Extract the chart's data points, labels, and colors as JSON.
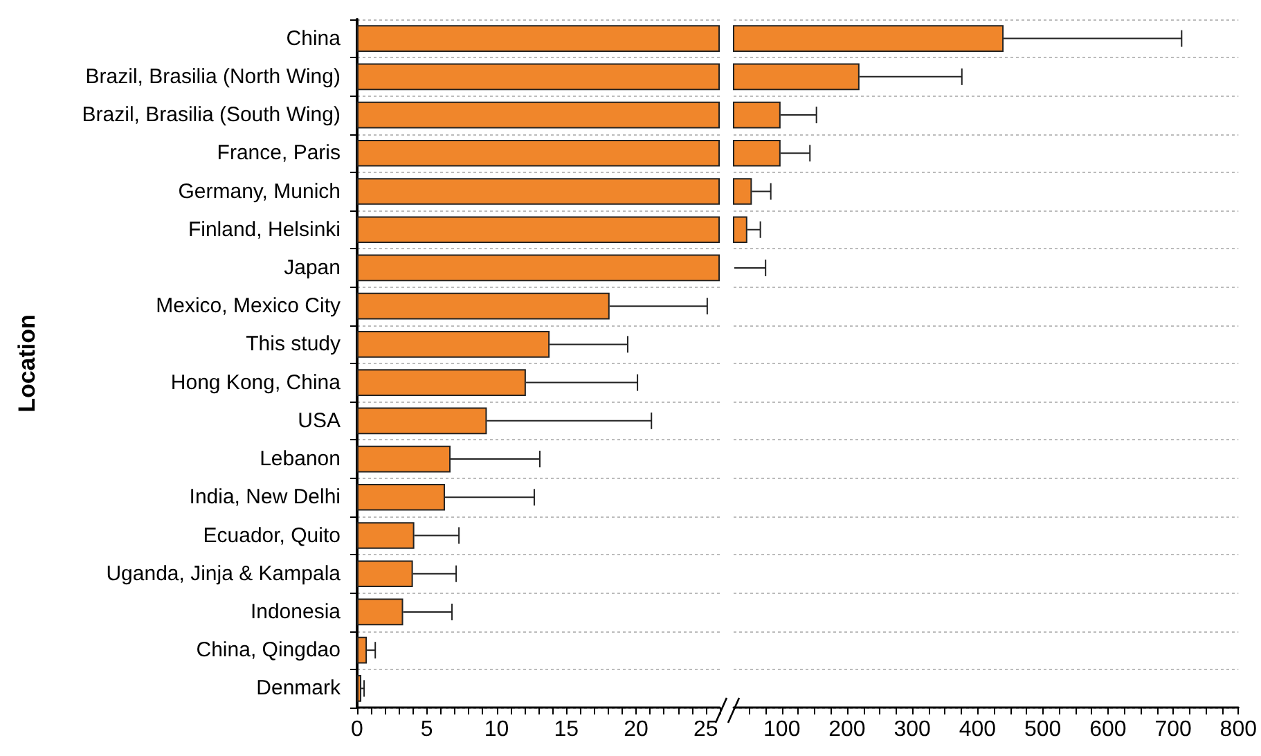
{
  "chart_data": [
    {
      "type": "bar",
      "orientation": "horizontal",
      "ylabel": "Location",
      "grid": "y",
      "categories": [
        "China",
        "Brazil, Brasilia (North Wing)",
        "Brazil, Brasilia (South Wing)",
        "France, Paris",
        "Germany, Munich",
        "Finland, Helsinki",
        "Japan",
        "Mexico, Mexico City",
        "This study",
        "Hong Kong, China",
        "USA",
        "Lebanon",
        "India, New Delhi",
        "Ecuador, Quito",
        "Uganda, Jinja & Kampala",
        "Indonesia",
        "China, Qingdao",
        "Denmark"
      ],
      "series": [
        {
          "color": "#f0862b",
          "values": [
            26,
            26,
            26,
            26,
            26,
            26,
            26,
            18.1,
            13.8,
            12.1,
            9.3,
            6.7,
            6.3,
            4.1,
            4.0,
            3.3,
            0.7,
            0.3
          ],
          "errors": [
            null,
            null,
            null,
            null,
            null,
            null,
            null,
            7.0,
            5.6,
            8.0,
            11.8,
            6.4,
            6.4,
            3.2,
            3.1,
            3.5,
            0.6,
            0.2
          ]
        }
      ],
      "xlim": [
        0,
        26
      ],
      "xticks": [
        0,
        {
          "value": 1,
          "label": null
        },
        {
          "value": 2,
          "label": null
        },
        {
          "value": 3,
          "label": null
        },
        {
          "value": 4,
          "label": null
        },
        5,
        {
          "value": 6,
          "label": null
        },
        {
          "value": 7,
          "label": null
        },
        {
          "value": 8,
          "label": null
        },
        {
          "value": 9,
          "label": null
        },
        10,
        {
          "value": 11,
          "label": null
        },
        {
          "value": 12,
          "label": null
        },
        {
          "value": 13,
          "label": null
        },
        {
          "value": 14,
          "label": null
        },
        15,
        {
          "value": 16,
          "label": null
        },
        {
          "value": 17,
          "label": null
        },
        {
          "value": 18,
          "label": null
        },
        {
          "value": 19,
          "label": null
        },
        20,
        {
          "value": 21,
          "label": null
        },
        {
          "value": 22,
          "label": null
        },
        {
          "value": 23,
          "label": null
        },
        {
          "value": 24,
          "label": null
        },
        25,
        {
          "value": 26,
          "label": null
        }
      ]
    },
    {
      "type": "bar",
      "orientation": "horizontal",
      "grid": "y",
      "tick_labels": "x",
      "series": [
        {
          "color": "#f0862b",
          "values": [
            440,
            219,
            98,
            98,
            54,
            47,
            27,
            null,
            null,
            null,
            null,
            null,
            null,
            null,
            null,
            null,
            null,
            null
          ],
          "errors": [
            273,
            157,
            55,
            45,
            29,
            20,
            48,
            null,
            null,
            null,
            null,
            null,
            null,
            null,
            null,
            null,
            null,
            null
          ]
        }
      ],
      "xlim": [
        26,
        800
      ],
      "xticks": [
        {
          "value": 50,
          "label": null
        },
        {
          "value": 75,
          "label": null
        },
        100,
        {
          "value": 125,
          "label": null
        },
        {
          "value": 150,
          "label": null
        },
        {
          "value": 175,
          "label": null
        },
        200,
        {
          "value": 225,
          "label": null
        },
        {
          "value": 250,
          "label": null
        },
        {
          "value": 275,
          "label": null
        },
        300,
        {
          "value": 325,
          "label": null
        },
        {
          "value": 350,
          "label": null
        },
        {
          "value": 375,
          "label": null
        },
        400,
        {
          "value": 425,
          "label": null
        },
        {
          "value": 450,
          "label": null
        },
        {
          "value": 475,
          "label": null
        },
        500,
        {
          "value": 525,
          "label": null
        },
        {
          "value": 550,
          "label": null
        },
        {
          "value": 575,
          "label": null
        },
        600,
        {
          "value": 625,
          "label": null
        },
        {
          "value": 650,
          "label": null
        },
        {
          "value": 675,
          "label": null
        },
        700,
        {
          "value": 725,
          "label": null
        },
        {
          "value": 750,
          "label": null
        },
        {
          "value": 775,
          "label": null
        },
        800
      ]
    }
  ]
}
